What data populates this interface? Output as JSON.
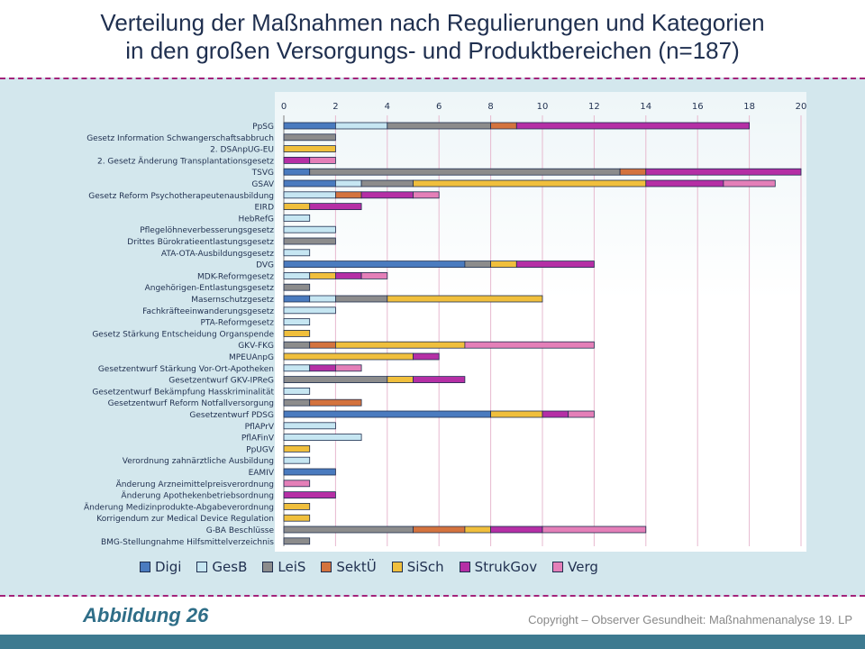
{
  "title": {
    "line1": "Verteilung der Maßnahmen nach Regulierungen und Kategorien",
    "line2": "in den großen Versorgungs- und Produktbereichen (n=187)"
  },
  "figure_label": "Abbildung 26",
  "copyright": "Copyright – Observer Gesundheit: Maßnahmenanalyse 19. LP",
  "colors": {
    "band": "#d3e7ed",
    "dash": "#a3237a",
    "bottom_bar": "#3d7a90",
    "title": "#1f2f4f",
    "figure_label": "#2f6e88"
  },
  "chart_data": {
    "type": "bar",
    "orientation": "horizontal",
    "stacked": true,
    "xlim": [
      0,
      20
    ],
    "xticks": [
      0,
      2,
      4,
      6,
      8,
      10,
      12,
      14,
      16,
      18,
      20
    ],
    "x_axis_position": "top",
    "grid": "vertical",
    "legend_position": "bottom",
    "categories": [
      "PpSG",
      "Gesetz Information Schwangerschaftsabbruch",
      "2. DSAnpUG-EU",
      "2. Gesetz Änderung Transplantationsgesetz",
      "TSVG",
      "GSAV",
      "Gesetz Reform Psychotherapeutenausbildung",
      "EIRD",
      "HebRefG",
      "Pflegelöhneverbesserungsgesetz",
      "Drittes Bürokratieentlastungsgesetz",
      "ATA-OTA-Ausbildungsgesetz",
      "DVG",
      "MDK-Reformgesetz",
      "Angehörigen-Entlastungsgesetz",
      "Masernschutzgesetz",
      "Fachkräfteeinwanderungsgesetz",
      "PTA-Reformgesetz",
      "Gesetz Stärkung Entscheidung Organspende",
      "GKV-FKG",
      "MPEUAnpG",
      "Gesetzentwurf Stärkung Vor-Ort-Apotheken",
      "Gesetzentwurf GKV-IPReG",
      "Gesetzentwurf Bekämpfung Hasskriminalität",
      "Gesetzentwurf Reform Notfallversorgung",
      "Gesetzentwurf PDSG",
      "PflAPrV",
      "PflAFinV",
      "PpUGV",
      "Verordnung zahnärztliche Ausbildung",
      "EAMIV",
      "Änderung Arzneimittelpreisverordnung",
      "Änderung Apothekenbetriebsordnung",
      "Änderung Medizinprodukte-Abgabeverordnung",
      "Korrigendum zur Medical Device Regulation",
      "G-BA Beschlüsse",
      "BMG-Stellungnahme Hilfsmittelverzeichnis"
    ],
    "series": [
      {
        "name": "Digi",
        "color": "#4a7bbf",
        "values": [
          2,
          0,
          0,
          0,
          1,
          2,
          0,
          0,
          0,
          0,
          0,
          0,
          7,
          0,
          0,
          1,
          0,
          0,
          0,
          0,
          0,
          0,
          0,
          0,
          0,
          8,
          0,
          0,
          0,
          0,
          2,
          0,
          0,
          0,
          0,
          0,
          0
        ]
      },
      {
        "name": "GesB",
        "color": "#c6e6f2",
        "values": [
          2,
          0,
          0,
          0,
          0,
          1,
          2,
          0,
          1,
          2,
          0,
          1,
          0,
          1,
          0,
          1,
          2,
          1,
          0,
          0,
          0,
          1,
          0,
          1,
          0,
          0,
          2,
          3,
          0,
          1,
          0,
          0,
          0,
          0,
          0,
          0,
          0
        ]
      },
      {
        "name": "LeiS",
        "color": "#8c8c8c",
        "values": [
          4,
          2,
          0,
          0,
          12,
          2,
          0,
          0,
          0,
          0,
          2,
          0,
          1,
          0,
          1,
          2,
          0,
          0,
          0,
          1,
          0,
          0,
          4,
          0,
          1,
          0,
          0,
          0,
          0,
          0,
          0,
          0,
          0,
          0,
          0,
          5,
          1
        ]
      },
      {
        "name": "SektÜ",
        "color": "#d4733e",
        "values": [
          1,
          0,
          0,
          0,
          1,
          0,
          1,
          0,
          0,
          0,
          0,
          0,
          0,
          0,
          0,
          0,
          0,
          0,
          0,
          1,
          0,
          0,
          0,
          0,
          2,
          0,
          0,
          0,
          0,
          0,
          0,
          0,
          0,
          0,
          0,
          2,
          0
        ]
      },
      {
        "name": "SiSch",
        "color": "#f0bf3c",
        "values": [
          0,
          0,
          2,
          0,
          0,
          9,
          0,
          1,
          0,
          0,
          0,
          0,
          1,
          1,
          0,
          6,
          0,
          0,
          1,
          5,
          5,
          0,
          1,
          0,
          0,
          2,
          0,
          0,
          1,
          0,
          0,
          0,
          0,
          1,
          1,
          1,
          0
        ]
      },
      {
        "name": "StrukGov",
        "color": "#b52fa5",
        "values": [
          9,
          0,
          0,
          1,
          6,
          3,
          2,
          2,
          0,
          0,
          0,
          0,
          3,
          1,
          0,
          0,
          0,
          0,
          0,
          0,
          1,
          1,
          2,
          0,
          0,
          1,
          0,
          0,
          0,
          0,
          0,
          0,
          2,
          0,
          0,
          2,
          0
        ]
      },
      {
        "name": "Verg",
        "color": "#e47fb8",
        "values": [
          0,
          0,
          0,
          1,
          0,
          2,
          1,
          0,
          0,
          0,
          0,
          0,
          0,
          1,
          0,
          0,
          0,
          0,
          0,
          5,
          0,
          1,
          0,
          0,
          0,
          1,
          0,
          0,
          0,
          0,
          0,
          1,
          0,
          0,
          0,
          4,
          0
        ]
      }
    ]
  }
}
